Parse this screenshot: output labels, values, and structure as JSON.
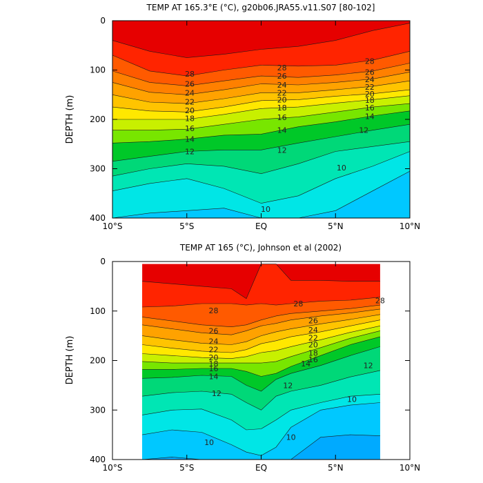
{
  "palette": {
    "warm_to_cold": [
      "#e60000",
      "#ff2400",
      "#ff5a00",
      "#ff8000",
      "#ffa200",
      "#ffc400",
      "#ffe800",
      "#c8f000",
      "#78e600",
      "#00c828",
      "#00d878",
      "#00e6b4",
      "#00e6e6",
      "#00c8ff",
      "#00aaff",
      "#1e8cff",
      "#1e6ef0",
      "#1450dc",
      "#0a32c8"
    ]
  },
  "charts": [
    {
      "type": "contour",
      "title": "TEMP AT 165.3°E (°C), g20b06.JRA55.v11.S07 [80-102]",
      "ylabel": "DEPTH (m)",
      "xlim": [
        -10,
        10
      ],
      "ylim": [
        400,
        0
      ],
      "x_ticks": [
        "10°S",
        "5°S",
        "EQ",
        "5°N",
        "10°N"
      ],
      "y_ticks": [
        "0",
        "100",
        "200",
        "300",
        "400"
      ],
      "data_extent_x": [
        -10,
        10
      ],
      "isotherm_depths": {
        "x": [
          -10,
          -7.5,
          -5,
          -2.5,
          0,
          2.5,
          5,
          7.5,
          10
        ],
        "levels": [
          {
            "t": 29,
            "depth": [
              40,
              62,
              75,
              68,
              58,
              52,
              40,
              20,
              5
            ]
          },
          {
            "t": 28,
            "depth": [
              70,
              102,
              112,
              100,
              90,
              92,
              90,
              80,
              62
            ]
          },
          {
            "t": 26,
            "depth": [
              102,
              125,
              132,
              122,
              112,
              115,
              110,
              102,
              86
            ]
          },
          {
            "t": 24,
            "depth": [
              125,
              145,
              150,
              140,
              128,
              130,
              125,
              118,
              104
            ]
          },
          {
            "t": 22,
            "depth": [
              150,
              165,
              168,
              158,
              146,
              146,
              140,
              133,
              122
            ]
          },
          {
            "t": 20,
            "depth": [
              175,
              183,
              185,
              175,
              162,
              160,
              153,
              148,
              140
            ]
          },
          {
            "t": 18,
            "depth": [
              200,
              200,
              200,
              190,
              178,
              175,
              167,
              160,
              152
            ]
          },
          {
            "t": 16,
            "depth": [
              222,
              222,
              220,
              210,
              200,
              195,
              185,
              175,
              168
            ]
          },
          {
            "t": 14,
            "depth": [
              248,
              245,
              240,
              232,
              230,
              215,
              205,
              193,
              183
            ]
          },
          {
            "t": 12,
            "depth": [
              285,
              275,
              265,
              262,
              262,
              248,
              235,
              222,
              210
            ]
          },
          {
            "t": 11,
            "depth": [
              315,
              300,
              290,
              295,
              310,
              290,
              265,
              255,
              245
            ]
          },
          {
            "t": 10,
            "depth": [
              345,
              330,
              320,
              340,
              370,
              355,
              320,
              295,
              265
            ]
          },
          {
            "t": 9,
            "depth": [
              400,
              390,
              385,
              380,
              400,
              400,
              385,
              345,
              305
            ]
          }
        ]
      },
      "contour_labels": [
        {
          "text": "28",
          "x": -4.8,
          "d": 108
        },
        {
          "text": "28",
          "x": 1.4,
          "d": 95
        },
        {
          "text": "28",
          "x": 7.3,
          "d": 82
        },
        {
          "text": "26",
          "x": -4.8,
          "d": 128
        },
        {
          "text": "26",
          "x": 1.4,
          "d": 112
        },
        {
          "text": "26",
          "x": 7.3,
          "d": 104
        },
        {
          "text": "24",
          "x": -4.8,
          "d": 146
        },
        {
          "text": "24",
          "x": 1.4,
          "d": 130
        },
        {
          "text": "24",
          "x": 7.3,
          "d": 119
        },
        {
          "text": "22",
          "x": -4.8,
          "d": 164
        },
        {
          "text": "22",
          "x": 1.4,
          "d": 146
        },
        {
          "text": "22",
          "x": 7.3,
          "d": 134
        },
        {
          "text": "20",
          "x": -4.8,
          "d": 182
        },
        {
          "text": "20",
          "x": 1.4,
          "d": 160
        },
        {
          "text": "20",
          "x": 7.3,
          "d": 148
        },
        {
          "text": "18",
          "x": -4.8,
          "d": 198
        },
        {
          "text": "18",
          "x": 1.4,
          "d": 176
        },
        {
          "text": "18",
          "x": 7.3,
          "d": 161
        },
        {
          "text": "16",
          "x": -4.8,
          "d": 218
        },
        {
          "text": "16",
          "x": 1.4,
          "d": 196
        },
        {
          "text": "16",
          "x": 7.3,
          "d": 176
        },
        {
          "text": "14",
          "x": -4.8,
          "d": 240
        },
        {
          "text": "14",
          "x": 1.4,
          "d": 222
        },
        {
          "text": "14",
          "x": 7.3,
          "d": 194
        },
        {
          "text": "12",
          "x": -4.8,
          "d": 265
        },
        {
          "text": "12",
          "x": 1.4,
          "d": 262
        },
        {
          "text": "12",
          "x": 6.9,
          "d": 222
        },
        {
          "text": "10",
          "x": 0.3,
          "d": 382
        },
        {
          "text": "10",
          "x": 5.4,
          "d": 298
        }
      ]
    },
    {
      "type": "contour",
      "title": "TEMP AT 165 (°C), Johnson et al (2002)",
      "ylabel": "DEPTH (m)",
      "xlim": [
        -10,
        10
      ],
      "ylim": [
        400,
        0
      ],
      "x_ticks": [
        "10°S",
        "5°S",
        "EQ",
        "5°N",
        "10°N"
      ],
      "y_ticks": [
        "0",
        "100",
        "200",
        "300",
        "400"
      ],
      "data_extent_x": [
        -8,
        8
      ],
      "data_extent_depth": [
        5,
        400
      ],
      "isotherm_depths": {
        "x": [
          -8,
          -6,
          -4,
          -2,
          -1,
          0,
          1,
          2,
          4,
          6,
          8
        ],
        "levels": [
          {
            "t": 29,
            "depth": [
              40,
              45,
              50,
              55,
              75,
              5,
              5,
              38,
              38,
              40,
              40
            ]
          },
          {
            "t": 28,
            "depth": [
              92,
              90,
              85,
              85,
              88,
              85,
              88,
              85,
              80,
              78,
              72
            ]
          },
          {
            "t": 27,
            "depth": [
              112,
              120,
              128,
              132,
              128,
              118,
              110,
              105,
              100,
              95,
              88
            ]
          },
          {
            "t": 26,
            "depth": [
              128,
              136,
              144,
              148,
              140,
              130,
              125,
              118,
              110,
              104,
              96
            ]
          },
          {
            "t": 24,
            "depth": [
              150,
              158,
              165,
              168,
              162,
              150,
              142,
              136,
              126,
              117,
              107
            ]
          },
          {
            "t": 22,
            "depth": [
              168,
              175,
              181,
              184,
              178,
              166,
              160,
              152,
              142,
              130,
              118
            ]
          },
          {
            "t": 20,
            "depth": [
              186,
              190,
              194,
              196,
              192,
              184,
              180,
              172,
              158,
              143,
              130
            ]
          },
          {
            "t": 18,
            "depth": [
              202,
              205,
              205,
              205,
              205,
              205,
              202,
              192,
              174,
              155,
              140
            ]
          },
          {
            "t": 16,
            "depth": [
              218,
              218,
              216,
              216,
              222,
              232,
              226,
              212,
              190,
              168,
              152
            ]
          },
          {
            "t": 14,
            "depth": [
              236,
              234,
              230,
              232,
              250,
              262,
              238,
              226,
              210,
              190,
              172
            ]
          },
          {
            "t": 12,
            "depth": [
              272,
              265,
              262,
              268,
              285,
              300,
              272,
              262,
              250,
              233,
              220
            ]
          },
          {
            "t": 11,
            "depth": [
              310,
              300,
              298,
              320,
              340,
              338,
              320,
              300,
              285,
              272,
              268
            ]
          },
          {
            "t": 10,
            "depth": [
              350,
              340,
              345,
              370,
              385,
              392,
              375,
              335,
              300,
              290,
              285
            ]
          },
          {
            "t": 9,
            "depth": [
              400,
              395,
              400,
              400,
              400,
              400,
              400,
              400,
              355,
              350,
              352
            ]
          }
        ]
      },
      "contour_labels": [
        {
          "text": "28",
          "x": -3.2,
          "d": 99
        },
        {
          "text": "28",
          "x": 2.5,
          "d": 85
        },
        {
          "text": "28",
          "x": 8.0,
          "d": 79
        },
        {
          "text": "26",
          "x": -3.2,
          "d": 140
        },
        {
          "text": "26",
          "x": 3.5,
          "d": 119
        },
        {
          "text": "24",
          "x": -3.2,
          "d": 161
        },
        {
          "text": "24",
          "x": 3.5,
          "d": 138
        },
        {
          "text": "22",
          "x": -3.2,
          "d": 178
        },
        {
          "text": "22",
          "x": 3.5,
          "d": 154
        },
        {
          "text": "20",
          "x": -3.2,
          "d": 194
        },
        {
          "text": "20",
          "x": 3.5,
          "d": 168
        },
        {
          "text": "18",
          "x": -3.2,
          "d": 206
        },
        {
          "text": "18",
          "x": 3.5,
          "d": 185
        },
        {
          "text": "16",
          "x": -3.2,
          "d": 216
        },
        {
          "text": "16",
          "x": 3.5,
          "d": 198
        },
        {
          "text": "14",
          "x": -3.2,
          "d": 232
        },
        {
          "text": "14",
          "x": 3.0,
          "d": 206
        },
        {
          "text": "12",
          "x": -3.0,
          "d": 266
        },
        {
          "text": "12",
          "x": 1.8,
          "d": 250
        },
        {
          "text": "12",
          "x": 7.2,
          "d": 210
        },
        {
          "text": "10",
          "x": -3.5,
          "d": 365
        },
        {
          "text": "10",
          "x": 2.0,
          "d": 355
        },
        {
          "text": "10",
          "x": 6.1,
          "d": 278
        }
      ]
    }
  ]
}
